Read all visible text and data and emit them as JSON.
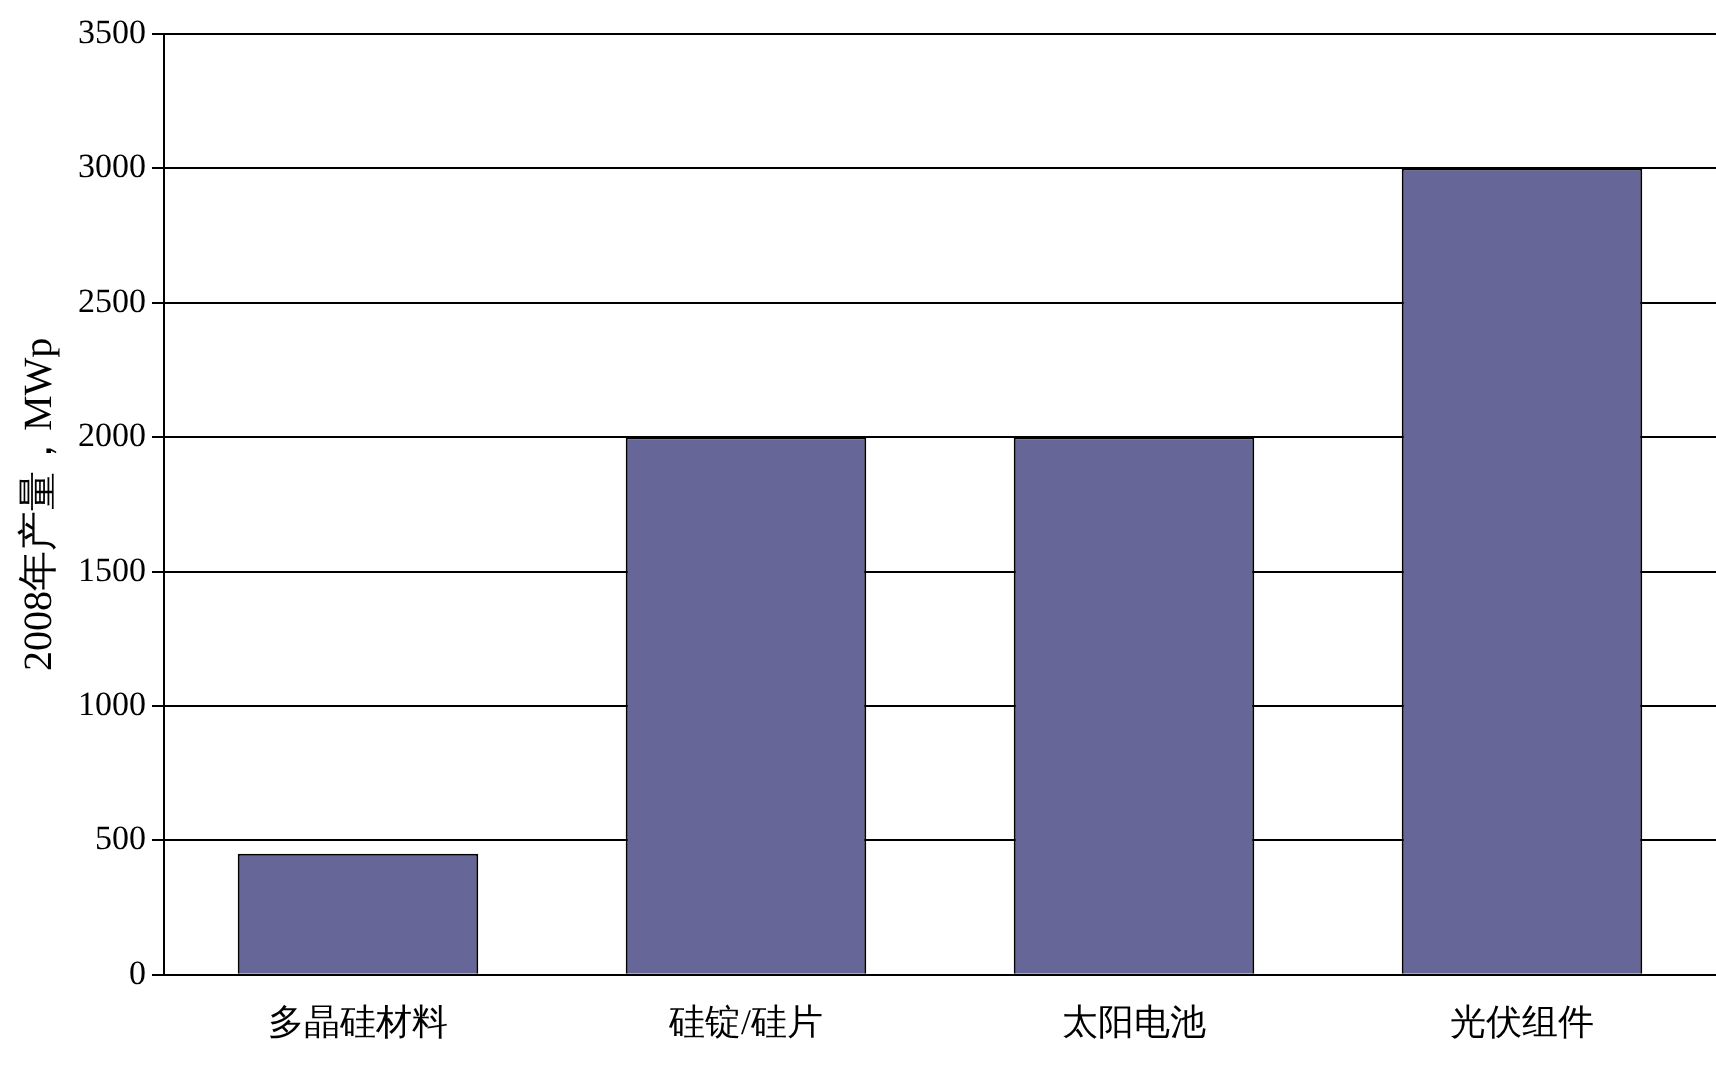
{
  "chart_data": {
    "type": "bar",
    "ylabel": "2008年产量，MWp",
    "categories": [
      "多晶硅材料",
      "硅锭/硅片",
      "太阳电池",
      "光伏组件"
    ],
    "values": [
      450,
      2000,
      2000,
      3000
    ],
    "color": "#666699",
    "ylim": [
      0,
      3500
    ],
    "yticks": [
      0,
      500,
      1000,
      1500,
      2000,
      2500,
      3000,
      3500
    ],
    "grid": "y",
    "legend": false
  }
}
